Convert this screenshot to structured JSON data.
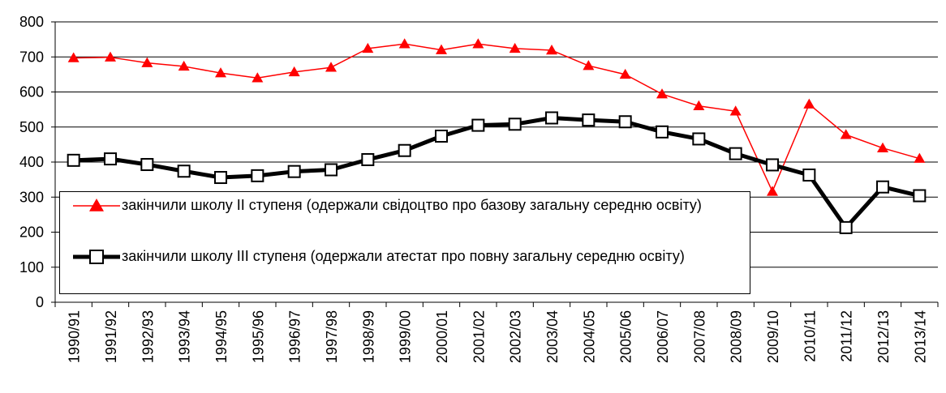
{
  "chart_data": {
    "type": "line",
    "categories": [
      "1990/91",
      "1991/92",
      "1992/93",
      "1993/94",
      "1994/95",
      "1995/96",
      "1996/97",
      "1997/98",
      "1998/99",
      "1999/00",
      "2000/01",
      "2001/02",
      "2002/03",
      "2003/04",
      "2004/05",
      "2005/06",
      "2006/07",
      "2007/08",
      "2008/09",
      "2009/10",
      "2010/11",
      "2011/12",
      "2012/13",
      "2013/14"
    ],
    "series": [
      {
        "name": "закінчили школу ІІ ступеня (одержали свідоцтво про базову загальну середню освіту)",
        "color": "#ff0000",
        "marker": "triangle",
        "values": [
          697,
          699,
          683,
          673,
          654,
          640,
          657,
          670,
          724,
          737,
          720,
          737,
          724,
          719,
          675,
          650,
          594,
          560,
          545,
          316,
          565,
          478,
          440,
          410
        ]
      },
      {
        "name": "закінчили школу ІІІ ступеня (одержали атестат про повну загальну середню освіту)",
        "color": "#000000",
        "marker": "square",
        "values": [
          405,
          409,
          393,
          374,
          356,
          361,
          373,
          378,
          407,
          433,
          474,
          505,
          508,
          526,
          520,
          515,
          486,
          466,
          424,
          392,
          363,
          213,
          329,
          304
        ]
      }
    ],
    "ylim": [
      0,
      800
    ],
    "yticks": [
      0,
      100,
      200,
      300,
      400,
      500,
      600,
      700,
      800
    ],
    "grid": true
  }
}
